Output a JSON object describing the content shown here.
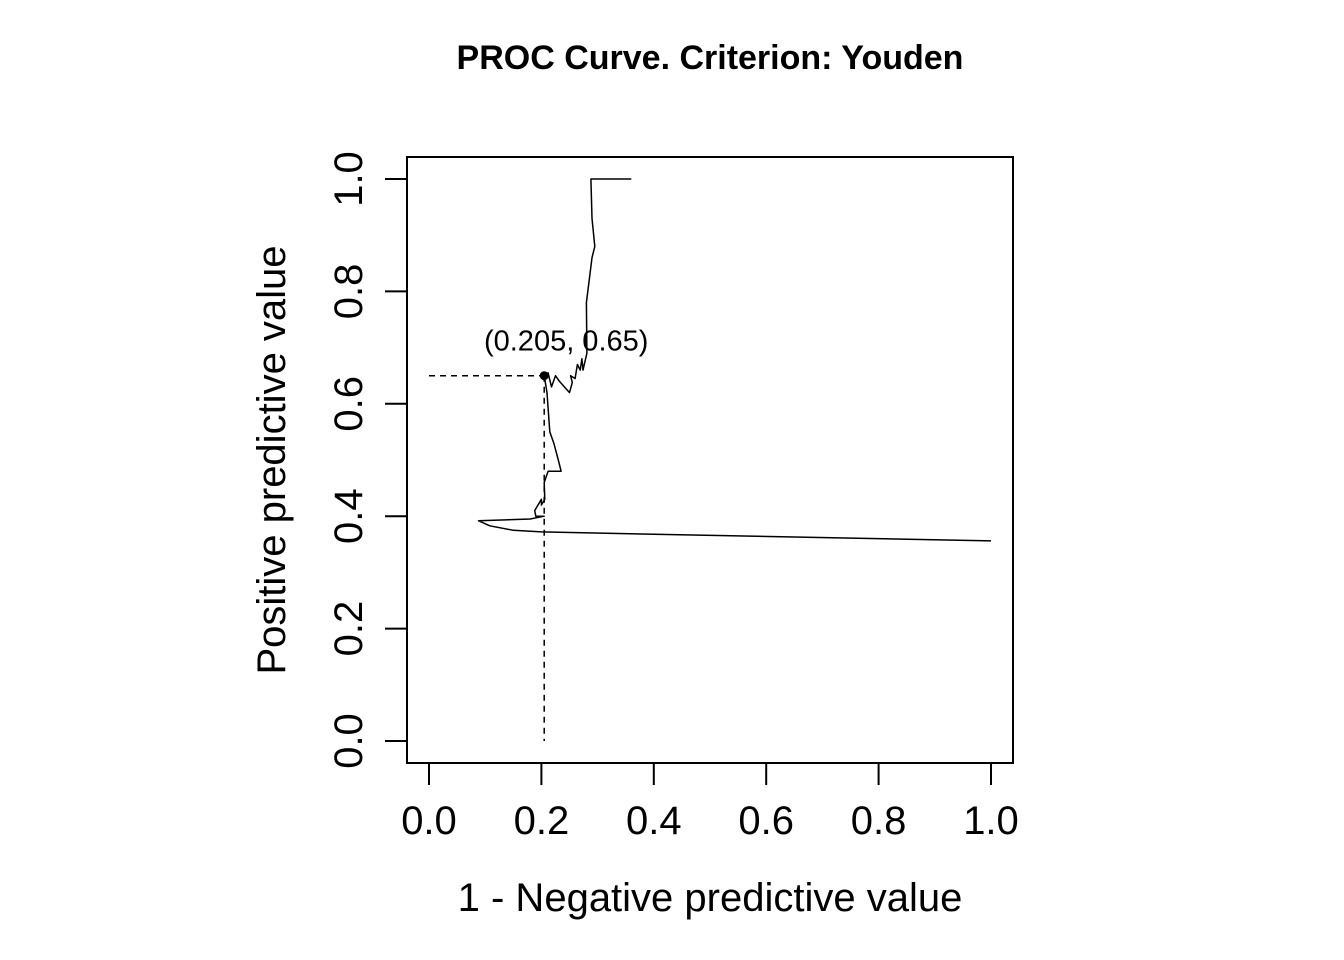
{
  "chart_data": {
    "type": "line",
    "title": "PROC Curve. Criterion: Youden",
    "xlabel": "1 - Negative predictive value",
    "ylabel": "Positive predictive value",
    "xlim": [
      0,
      1
    ],
    "ylim": [
      0,
      1
    ],
    "xticks": [
      "0.0",
      "0.2",
      "0.4",
      "0.6",
      "0.8",
      "1.0"
    ],
    "yticks": [
      "0.0",
      "0.2",
      "0.4",
      "0.6",
      "0.8",
      "1.0"
    ],
    "grid": false,
    "legend": "none",
    "series": [
      {
        "points": [
          [
            0.36,
            1.0
          ],
          [
            0.288,
            1.0
          ],
          [
            0.29,
            0.93
          ],
          [
            0.295,
            0.88
          ],
          [
            0.29,
            0.86
          ],
          [
            0.28,
            0.78
          ],
          [
            0.281,
            0.69
          ],
          [
            0.274,
            0.66
          ],
          [
            0.272,
            0.68
          ],
          [
            0.269,
            0.66
          ],
          [
            0.264,
            0.67
          ],
          [
            0.26,
            0.645
          ],
          [
            0.252,
            0.65
          ],
          [
            0.255,
            0.638
          ],
          [
            0.25,
            0.62
          ],
          [
            0.232,
            0.64
          ],
          [
            0.225,
            0.65
          ],
          [
            0.218,
            0.63
          ],
          [
            0.212,
            0.655
          ],
          [
            0.205,
            0.65
          ],
          [
            0.21,
            0.62
          ],
          [
            0.215,
            0.55
          ],
          [
            0.222,
            0.53
          ],
          [
            0.23,
            0.5
          ],
          [
            0.235,
            0.48
          ],
          [
            0.215,
            0.48
          ],
          [
            0.212,
            0.48
          ],
          [
            0.205,
            0.46
          ],
          [
            0.206,
            0.43
          ],
          [
            0.2,
            0.42
          ],
          [
            0.2,
            0.43
          ],
          [
            0.188,
            0.41
          ],
          [
            0.19,
            0.4
          ],
          [
            0.205,
            0.4
          ],
          [
            0.18,
            0.395
          ],
          [
            0.088,
            0.392
          ],
          [
            0.108,
            0.383
          ],
          [
            0.15,
            0.375
          ],
          [
            0.2,
            0.372
          ],
          [
            0.4,
            0.368
          ],
          [
            1.0,
            0.356
          ]
        ]
      }
    ],
    "optimal_point": {
      "x": 0.205,
      "y": 0.65,
      "label": "(0.205, 0.65)"
    }
  }
}
